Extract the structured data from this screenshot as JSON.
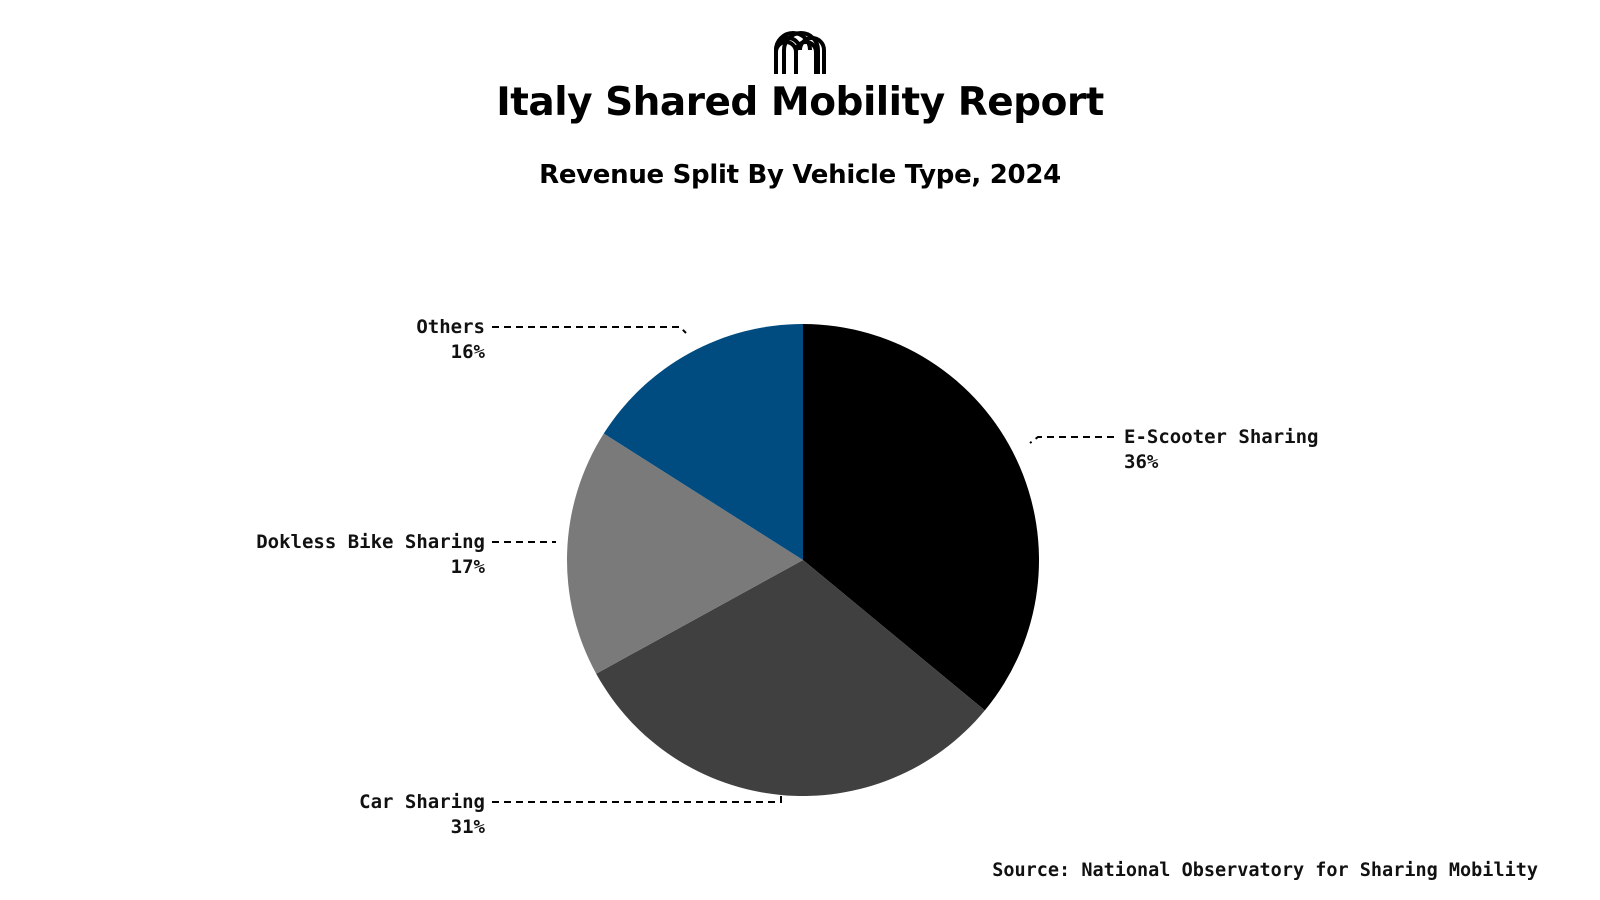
{
  "header": {
    "logo_icon": "report-logo-icon",
    "title": "Italy Shared Mobility Report",
    "subtitle": "Revenue Split By Vehicle Type, 2024"
  },
  "chart_data": {
    "type": "pie",
    "title": "Revenue Split By Vehicle Type, 2024",
    "categories": [
      "E-Scooter Sharing",
      "Car Sharing",
      "Dokless Bike Sharing",
      "Others"
    ],
    "values": [
      36,
      31,
      17,
      16
    ],
    "value_labels": [
      "36%",
      "31%",
      "17%",
      "16%"
    ],
    "colors": [
      "#000000",
      "#404040",
      "#7a7a7a",
      "#004b80"
    ],
    "start": "12 o'clock",
    "direction": "clockwise",
    "legend": "none (direct labels with dashed leaders)"
  },
  "source": "Source: National Observatory for Sharing Mobility"
}
